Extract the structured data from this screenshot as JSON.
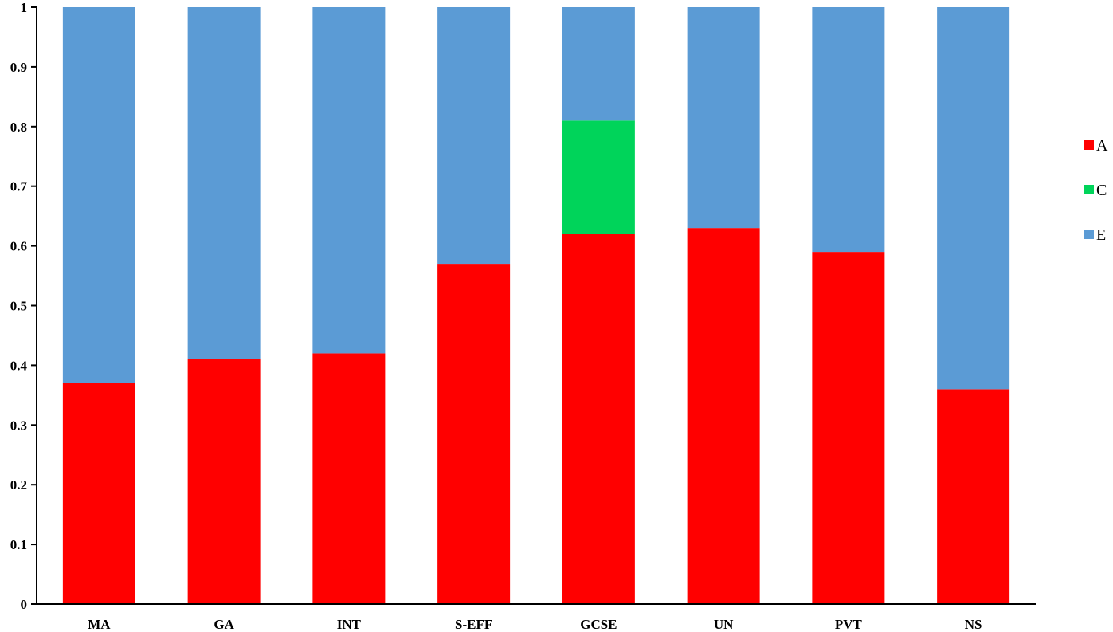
{
  "chart_data": {
    "type": "bar",
    "stacked": true,
    "categories": [
      "MA",
      "GA",
      "INT",
      "S-EFF",
      "GCSE",
      "UN",
      "PVT",
      "NS"
    ],
    "series": [
      {
        "name": "A",
        "color": "#ff0000",
        "values": [
          0.37,
          0.41,
          0.42,
          0.57,
          0.62,
          0.63,
          0.59,
          0.36
        ]
      },
      {
        "name": "C",
        "color": "#00d45a",
        "values": [
          0,
          0,
          0,
          0,
          0.19,
          0,
          0,
          0
        ]
      },
      {
        "name": "E",
        "color": "#5b9bd5",
        "values": [
          0.63,
          0.59,
          0.58,
          0.43,
          0.19,
          0.37,
          0.41,
          0.64
        ]
      }
    ],
    "y_ticks": [
      "0",
      "0.1",
      "0.2",
      "0.3",
      "0.4",
      "0.5",
      "0.6",
      "0.7",
      "0.8",
      "0.9",
      "1"
    ],
    "ylim": [
      0,
      1
    ],
    "grid": false,
    "legend_position": "right"
  }
}
